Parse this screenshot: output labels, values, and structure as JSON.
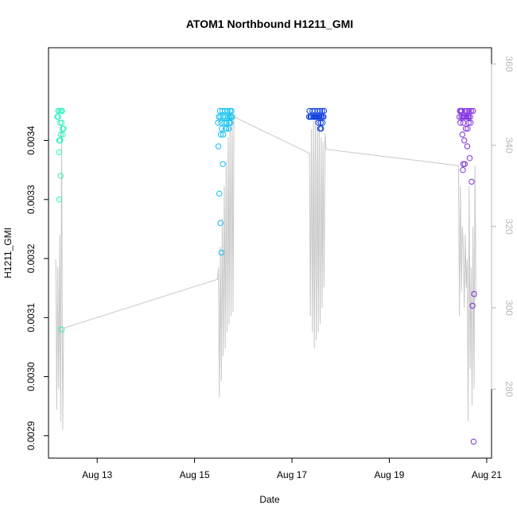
{
  "chart_data": {
    "type": "scatter",
    "title": "ATOM1 Northbound H1211_GMI",
    "xlabel": "Date",
    "ylabel": "H1211_GMI",
    "x_tick_labels": [
      "Aug 13",
      "Aug 15",
      "Aug 17",
      "Aug 19",
      "Aug 21"
    ],
    "x_tick_values": [
      13,
      15,
      17,
      19,
      21
    ],
    "xlim": [
      12.0,
      21.1
    ],
    "ylim": [
      0.002862,
      0.003557
    ],
    "y_ticks": [
      0.0029,
      0.003,
      0.0031,
      0.0032,
      0.0033,
      0.0034
    ],
    "y_tick_labels": [
      "0.0029",
      "0.0030",
      "0.0031",
      "0.0032",
      "0.0033",
      "0.0034"
    ],
    "y2lim": [
      263,
      364
    ],
    "y2_ticks": [
      280,
      300,
      320,
      340,
      360
    ],
    "y2_tick_labels": [
      "280",
      "300",
      "320",
      "340",
      "360"
    ],
    "grid": false,
    "colors": {
      "axis": "#000000",
      "right_axis": "#b8b8b8",
      "line": "#c8c8c8",
      "group1": "#2ef2c0",
      "group2": "#10c0f0",
      "group3": "#1040e0",
      "group4": "#8030e0"
    },
    "series": [
      {
        "group": "group1",
        "x": [
          12.2,
          12.23,
          12.26,
          12.28,
          12.18,
          12.2,
          12.24,
          12.27,
          12.29,
          12.31,
          12.25,
          12.29,
          12.22,
          12.23,
          12.24,
          12.22,
          12.25,
          12.22,
          12.27
        ],
        "y": [
          0.00345,
          0.00345,
          0.00345,
          0.00345,
          0.00344,
          0.00344,
          0.00343,
          0.00343,
          0.00342,
          0.00342,
          0.00341,
          0.00341,
          0.0034,
          0.0034,
          0.0034,
          0.00338,
          0.00334,
          0.0033,
          0.00308
        ]
      },
      {
        "group": "group2",
        "x": [
          15.52,
          15.57,
          15.62,
          15.68,
          15.73,
          15.76,
          15.5,
          15.53,
          15.58,
          15.63,
          15.69,
          15.72,
          15.75,
          15.77,
          15.55,
          15.61,
          15.66,
          15.71,
          15.74,
          15.48,
          15.56,
          15.64,
          15.7,
          15.59,
          15.54,
          15.49,
          15.65,
          15.51,
          15.58,
          15.53,
          15.55
        ],
        "y": [
          0.00345,
          0.00345,
          0.00345,
          0.00345,
          0.00345,
          0.00345,
          0.00344,
          0.00344,
          0.00344,
          0.00344,
          0.00344,
          0.00344,
          0.00344,
          0.00344,
          0.00343,
          0.00343,
          0.00343,
          0.00343,
          0.00343,
          0.00343,
          0.00342,
          0.00342,
          0.00342,
          0.00341,
          0.00341,
          0.00339,
          0.00342,
          0.00331,
          0.00336,
          0.00326,
          0.00321
        ]
      },
      {
        "group": "group3",
        "x": [
          17.36,
          17.42,
          17.47,
          17.53,
          17.58,
          17.62,
          17.66,
          17.38,
          17.44,
          17.5,
          17.55,
          17.6,
          17.64,
          17.4,
          17.46,
          17.52,
          17.57,
          17.35,
          17.39,
          17.45,
          17.51,
          17.56,
          17.61,
          17.65,
          17.48,
          17.54,
          17.59,
          17.63,
          17.6,
          17.58
        ],
        "y": [
          0.00345,
          0.00345,
          0.00345,
          0.00345,
          0.00345,
          0.00345,
          0.00345,
          0.00344,
          0.00344,
          0.00344,
          0.00344,
          0.00344,
          0.00344,
          0.00344,
          0.00344,
          0.00344,
          0.00344,
          0.00344,
          0.00344,
          0.00344,
          0.00344,
          0.00344,
          0.00344,
          0.00344,
          0.00344,
          0.00343,
          0.00343,
          0.00343,
          0.00342,
          0.00342
        ]
      },
      {
        "group": "group4",
        "x": [
          20.45,
          20.47,
          20.56,
          20.6,
          20.64,
          20.68,
          20.72,
          20.49,
          20.53,
          20.58,
          20.62,
          20.66,
          20.44,
          20.48,
          20.51,
          20.55,
          20.59,
          20.63,
          20.67,
          20.46,
          20.52,
          20.57,
          20.61,
          20.5,
          20.54,
          20.65,
          20.52,
          20.55,
          20.51,
          20.6,
          20.69,
          20.63,
          20.74,
          20.71,
          20.73
        ],
        "y": [
          0.00345,
          0.00345,
          0.00345,
          0.00345,
          0.00345,
          0.00345,
          0.00345,
          0.00345,
          0.00344,
          0.00344,
          0.00344,
          0.00344,
          0.00344,
          0.00344,
          0.00344,
          0.00344,
          0.00344,
          0.00344,
          0.00343,
          0.00343,
          0.00343,
          0.00342,
          0.00342,
          0.00341,
          0.0034,
          0.00337,
          0.00336,
          0.00336,
          0.00335,
          0.00339,
          0.00333,
          0.00343,
          0.00314,
          0.00312,
          0.00289
        ]
      }
    ],
    "line_series": {
      "x": [
        12.15,
        12.17,
        12.19,
        12.21,
        12.23,
        12.25,
        12.27,
        12.29,
        12.31,
        15.47,
        15.49,
        15.51,
        15.53,
        15.55,
        15.57,
        15.59,
        15.61,
        15.63,
        15.65,
        15.67,
        15.69,
        15.71,
        15.73,
        15.75,
        15.77,
        15.79,
        15.81,
        17.36,
        17.38,
        17.4,
        17.42,
        17.44,
        17.46,
        17.48,
        17.5,
        17.52,
        17.54,
        17.56,
        17.58,
        17.6,
        17.62,
        17.64,
        17.66,
        17.68,
        17.7,
        20.42,
        20.44,
        20.46,
        20.48,
        20.5,
        20.52,
        20.54,
        20.56,
        20.58,
        20.6,
        20.62,
        20.64,
        20.66,
        20.68,
        20.7,
        20.72,
        20.74,
        20.76,
        20.78
      ],
      "y": [
        312,
        275,
        310,
        280,
        318,
        272,
        345,
        270,
        295,
        307,
        310,
        278,
        315,
        282,
        322,
        288,
        330,
        290,
        336,
        294,
        342,
        296,
        345,
        298,
        347,
        299,
        347,
        338,
        298,
        344,
        294,
        346,
        290,
        348,
        292,
        347,
        294,
        345,
        296,
        342,
        300,
        341,
        305,
        343,
        339,
        335,
        298,
        330,
        304,
        320,
        315,
        300,
        318,
        305,
        312,
        272,
        330,
        285,
        310,
        276,
        320,
        280,
        335,
        302
      ]
    }
  }
}
